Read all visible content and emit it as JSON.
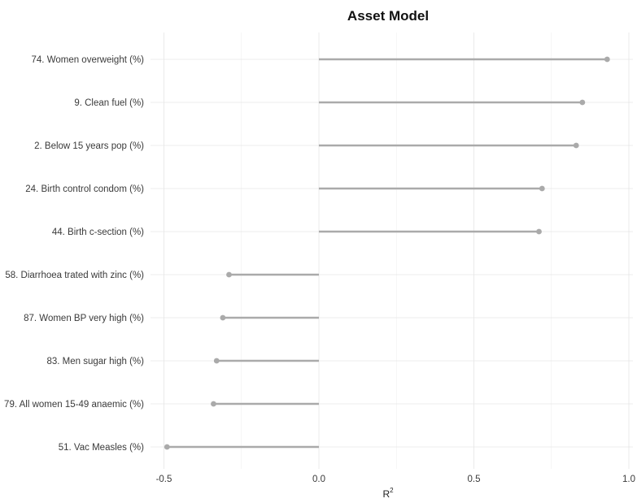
{
  "chart_data": {
    "type": "lollipop",
    "title": "Asset Model",
    "xlabel": "R",
    "xlabel_superscript": "2",
    "xlim": [
      -0.55,
      1.0
    ],
    "xticks": [
      -0.5,
      0.0,
      0.5,
      1.0
    ],
    "xtick_labels": [
      "-0.5",
      "0.0",
      "0.5",
      "1.0"
    ],
    "grid": true,
    "categories": [
      "74. Women overweight (%)",
      "9. Clean fuel (%)",
      "2. Below 15 years pop (%)",
      "24. Birth control condom (%)",
      "44. Birth c-section (%)",
      "58. Diarrhoea trated with zinc (%)",
      "87. Women BP very high (%)",
      "83. Men sugar high (%)",
      "79. All women 15-49 anaemic (%)",
      "51. Vac Measles (%)"
    ],
    "values": [
      0.93,
      0.85,
      0.83,
      0.72,
      0.71,
      -0.29,
      -0.31,
      -0.33,
      -0.34,
      -0.49
    ],
    "color": "#aaaaaa"
  }
}
